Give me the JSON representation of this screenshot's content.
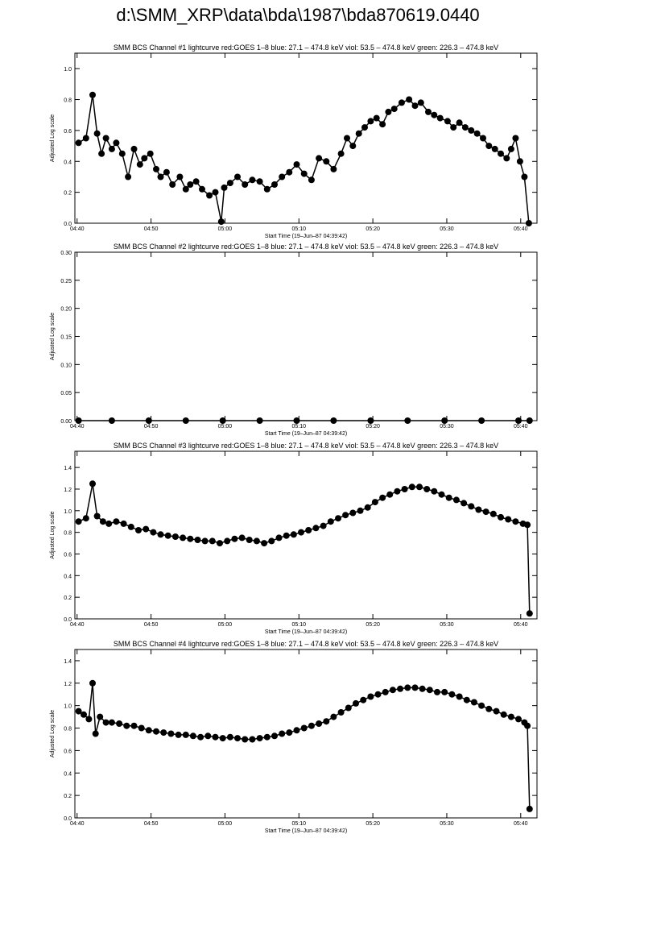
{
  "page": {
    "title": "d:\\SMM_XRP\\data\\bda\\1987\\bda870619.0440"
  },
  "chart_data": [
    {
      "type": "scatter",
      "title": "SMM BCS Channel #1 lightcurve  red:GOES 1–8  blue: 27.1 – 474.8 keV  viol: 53.5 – 474.8 keV  green: 226.3 – 474.8 keV",
      "xlabel": "Start Time (19–Jun–87 04:39:42)",
      "ylabel": "Adjusted Log scale",
      "xlim": [
        0,
        62.5
      ],
      "ylim": [
        0,
        1.1
      ],
      "yticks": [
        0.0,
        0.2,
        0.4,
        0.6,
        0.8,
        1.0
      ],
      "ytick_labels": [
        "0.0",
        "0.2",
        "0.4",
        "0.6",
        "0.8",
        "1.0"
      ],
      "xticks": [
        0.3,
        10.3,
        20.3,
        30.3,
        40.3,
        50.3,
        60.3
      ],
      "xtick_labels": [
        "04:40",
        "04:50",
        "05:00",
        "05:10",
        "05:20",
        "05:30",
        "05:40"
      ],
      "series": [
        {
          "color": "#000000",
          "x": [
            0.5,
            1.5,
            2.4,
            3.0,
            3.6,
            4.2,
            5.0,
            5.6,
            6.4,
            7.2,
            8.0,
            8.8,
            9.4,
            10.2,
            11.0,
            11.6,
            12.4,
            13.2,
            14.2,
            15.0,
            15.6,
            16.4,
            17.2,
            18.2,
            19.0,
            19.8,
            20.2,
            21.0,
            22.0,
            23.0,
            24.0,
            25.0,
            26.0,
            27.0,
            28.0,
            29.0,
            30.0,
            31.0,
            32.0,
            33.0,
            34.0,
            35.0,
            36.0,
            36.8,
            37.6,
            38.4,
            39.2,
            40.0,
            40.8,
            41.6,
            42.4,
            43.2,
            44.2,
            45.2,
            46.0,
            46.8,
            47.8,
            48.6,
            49.4,
            50.4,
            51.2,
            52.0,
            52.8,
            53.6,
            54.4,
            55.2,
            56.0,
            56.8,
            57.6,
            58.4,
            59.0,
            59.6,
            60.2,
            60.8,
            61.4
          ],
          "y": [
            0.52,
            0.55,
            0.83,
            0.58,
            0.45,
            0.55,
            0.48,
            0.52,
            0.45,
            0.3,
            0.48,
            0.38,
            0.42,
            0.45,
            0.35,
            0.3,
            0.33,
            0.25,
            0.3,
            0.22,
            0.25,
            0.27,
            0.22,
            0.18,
            0.2,
            0.01,
            0.23,
            0.26,
            0.3,
            0.25,
            0.28,
            0.27,
            0.22,
            0.25,
            0.3,
            0.33,
            0.38,
            0.32,
            0.28,
            0.42,
            0.4,
            0.35,
            0.45,
            0.55,
            0.5,
            0.58,
            0.62,
            0.66,
            0.68,
            0.64,
            0.72,
            0.74,
            0.78,
            0.8,
            0.76,
            0.78,
            0.72,
            0.7,
            0.68,
            0.66,
            0.62,
            0.65,
            0.62,
            0.6,
            0.58,
            0.55,
            0.5,
            0.48,
            0.45,
            0.42,
            0.48,
            0.55,
            0.4,
            0.3,
            0.0
          ]
        }
      ]
    },
    {
      "type": "scatter",
      "title": "SMM BCS Channel #2 lightcurve  red:GOES 1–8  blue: 27.1 – 474.8 keV  viol: 53.5 – 474.8 keV  green: 226.3 – 474.8 keV",
      "xlabel": "Start Time (19–Jun–87 04:39:42)",
      "ylabel": "Adjusted Log scale",
      "xlim": [
        0,
        62.5
      ],
      "ylim": [
        0,
        0.3
      ],
      "yticks": [
        0.0,
        0.05,
        0.1,
        0.15,
        0.2,
        0.25,
        0.3
      ],
      "ytick_labels": [
        "0.00",
        "0.05",
        "0.10",
        "0.15",
        "0.20",
        "0.25",
        "0.30"
      ],
      "xticks": [
        0.3,
        10.3,
        20.3,
        30.3,
        40.3,
        50.3,
        60.3
      ],
      "xtick_labels": [
        "04:40",
        "04:50",
        "05:00",
        "05:10",
        "05:20",
        "05:30",
        "05:40"
      ],
      "series": [
        {
          "color": "#000000",
          "x": [
            0.5,
            5,
            10,
            15,
            20,
            25,
            30,
            35,
            40,
            45,
            50,
            55,
            60,
            61.5
          ],
          "y": [
            0,
            0,
            0,
            0,
            0,
            0,
            0,
            0,
            0,
            0,
            0,
            0,
            0,
            0
          ]
        }
      ]
    },
    {
      "type": "scatter",
      "title": "SMM BCS Channel #3 lightcurve  red:GOES 1–8  blue: 27.1 – 474.8 keV  viol: 53.5 – 474.8 keV  green: 226.3 – 474.8 keV",
      "xlabel": "Start Time (19–Jun–87 04:39:42)",
      "ylabel": "Adjusted Log scale",
      "xlim": [
        0,
        62.5
      ],
      "ylim": [
        0,
        1.55
      ],
      "yticks": [
        0.0,
        0.2,
        0.4,
        0.6,
        0.8,
        1.0,
        1.2,
        1.4
      ],
      "ytick_labels": [
        "0.0",
        "0.2",
        "0.4",
        "0.6",
        "0.8",
        "1.0",
        "1.2",
        "1.4"
      ],
      "xticks": [
        0.3,
        10.3,
        20.3,
        30.3,
        40.3,
        50.3,
        60.3
      ],
      "xtick_labels": [
        "04:40",
        "04:50",
        "05:00",
        "05:10",
        "05:20",
        "05:30",
        "05:40"
      ],
      "series": [
        {
          "color": "#000000",
          "x": [
            0.5,
            1.5,
            2.4,
            3.0,
            3.8,
            4.6,
            5.6,
            6.6,
            7.6,
            8.6,
            9.6,
            10.6,
            11.6,
            12.6,
            13.6,
            14.6,
            15.6,
            16.6,
            17.6,
            18.6,
            19.6,
            20.6,
            21.6,
            22.6,
            23.6,
            24.6,
            25.6,
            26.6,
            27.6,
            28.6,
            29.6,
            30.6,
            31.6,
            32.6,
            33.6,
            34.6,
            35.6,
            36.6,
            37.6,
            38.6,
            39.6,
            40.6,
            41.6,
            42.6,
            43.6,
            44.6,
            45.6,
            46.6,
            47.6,
            48.6,
            49.6,
            50.6,
            51.6,
            52.6,
            53.6,
            54.6,
            55.6,
            56.6,
            57.6,
            58.6,
            59.6,
            60.6,
            61.2,
            61.5
          ],
          "y": [
            0.9,
            0.93,
            1.25,
            0.95,
            0.9,
            0.88,
            0.9,
            0.88,
            0.85,
            0.82,
            0.83,
            0.8,
            0.78,
            0.77,
            0.76,
            0.75,
            0.74,
            0.73,
            0.72,
            0.72,
            0.7,
            0.72,
            0.74,
            0.75,
            0.73,
            0.72,
            0.7,
            0.72,
            0.75,
            0.77,
            0.78,
            0.8,
            0.82,
            0.84,
            0.86,
            0.9,
            0.93,
            0.96,
            0.98,
            1.0,
            1.03,
            1.08,
            1.12,
            1.15,
            1.18,
            1.2,
            1.22,
            1.22,
            1.2,
            1.18,
            1.15,
            1.12,
            1.1,
            1.07,
            1.04,
            1.01,
            0.99,
            0.97,
            0.94,
            0.92,
            0.9,
            0.88,
            0.87,
            0.05
          ]
        }
      ]
    },
    {
      "type": "scatter",
      "title": "SMM BCS Channel #4 lightcurve  red:GOES 1–8  blue: 27.1 – 474.8 keV  viol: 53.5 – 474.8 keV  green: 226.3 – 474.8 keV",
      "xlabel": "Start Time (19–Jun–87 04:39:42)",
      "ylabel": "Adjusted Log scale",
      "xlim": [
        0,
        62.5
      ],
      "ylim": [
        0,
        1.5
      ],
      "yticks": [
        0.0,
        0.2,
        0.4,
        0.6,
        0.8,
        1.0,
        1.2,
        1.4
      ],
      "ytick_labels": [
        "0.0",
        "0.2",
        "0.4",
        "0.6",
        "0.8",
        "1.0",
        "1.2",
        "1.4"
      ],
      "xticks": [
        0.3,
        10.3,
        20.3,
        30.3,
        40.3,
        50.3,
        60.3
      ],
      "xtick_labels": [
        "04:40",
        "04:50",
        "05:00",
        "05:10",
        "05:20",
        "05:30",
        "05:40"
      ],
      "series": [
        {
          "color": "#000000",
          "x": [
            0.5,
            1.2,
            1.9,
            2.4,
            2.8,
            3.4,
            4.2,
            5.0,
            6.0,
            7.0,
            8.0,
            9.0,
            10.0,
            11.0,
            12.0,
            13.0,
            14.0,
            15.0,
            16.0,
            17.0,
            18.0,
            19.0,
            20.0,
            21.0,
            22.0,
            23.0,
            24.0,
            25.0,
            26.0,
            27.0,
            28.0,
            29.0,
            30.0,
            31.0,
            32.0,
            33.0,
            34.0,
            35.0,
            36.0,
            37.0,
            38.0,
            39.0,
            40.0,
            41.0,
            42.0,
            43.0,
            44.0,
            45.0,
            46.0,
            47.0,
            48.0,
            49.0,
            50.0,
            51.0,
            52.0,
            53.0,
            54.0,
            55.0,
            56.0,
            57.0,
            58.0,
            59.0,
            60.0,
            60.8,
            61.2,
            61.5
          ],
          "y": [
            0.95,
            0.92,
            0.88,
            1.2,
            0.75,
            0.9,
            0.85,
            0.85,
            0.84,
            0.82,
            0.82,
            0.8,
            0.78,
            0.77,
            0.76,
            0.75,
            0.74,
            0.74,
            0.73,
            0.72,
            0.73,
            0.72,
            0.71,
            0.72,
            0.71,
            0.7,
            0.7,
            0.71,
            0.72,
            0.73,
            0.75,
            0.76,
            0.78,
            0.8,
            0.82,
            0.84,
            0.86,
            0.9,
            0.94,
            0.98,
            1.02,
            1.05,
            1.08,
            1.1,
            1.12,
            1.14,
            1.15,
            1.16,
            1.16,
            1.15,
            1.14,
            1.12,
            1.12,
            1.1,
            1.08,
            1.05,
            1.03,
            1.0,
            0.97,
            0.95,
            0.92,
            0.9,
            0.88,
            0.85,
            0.82,
            0.08
          ]
        }
      ]
    }
  ]
}
